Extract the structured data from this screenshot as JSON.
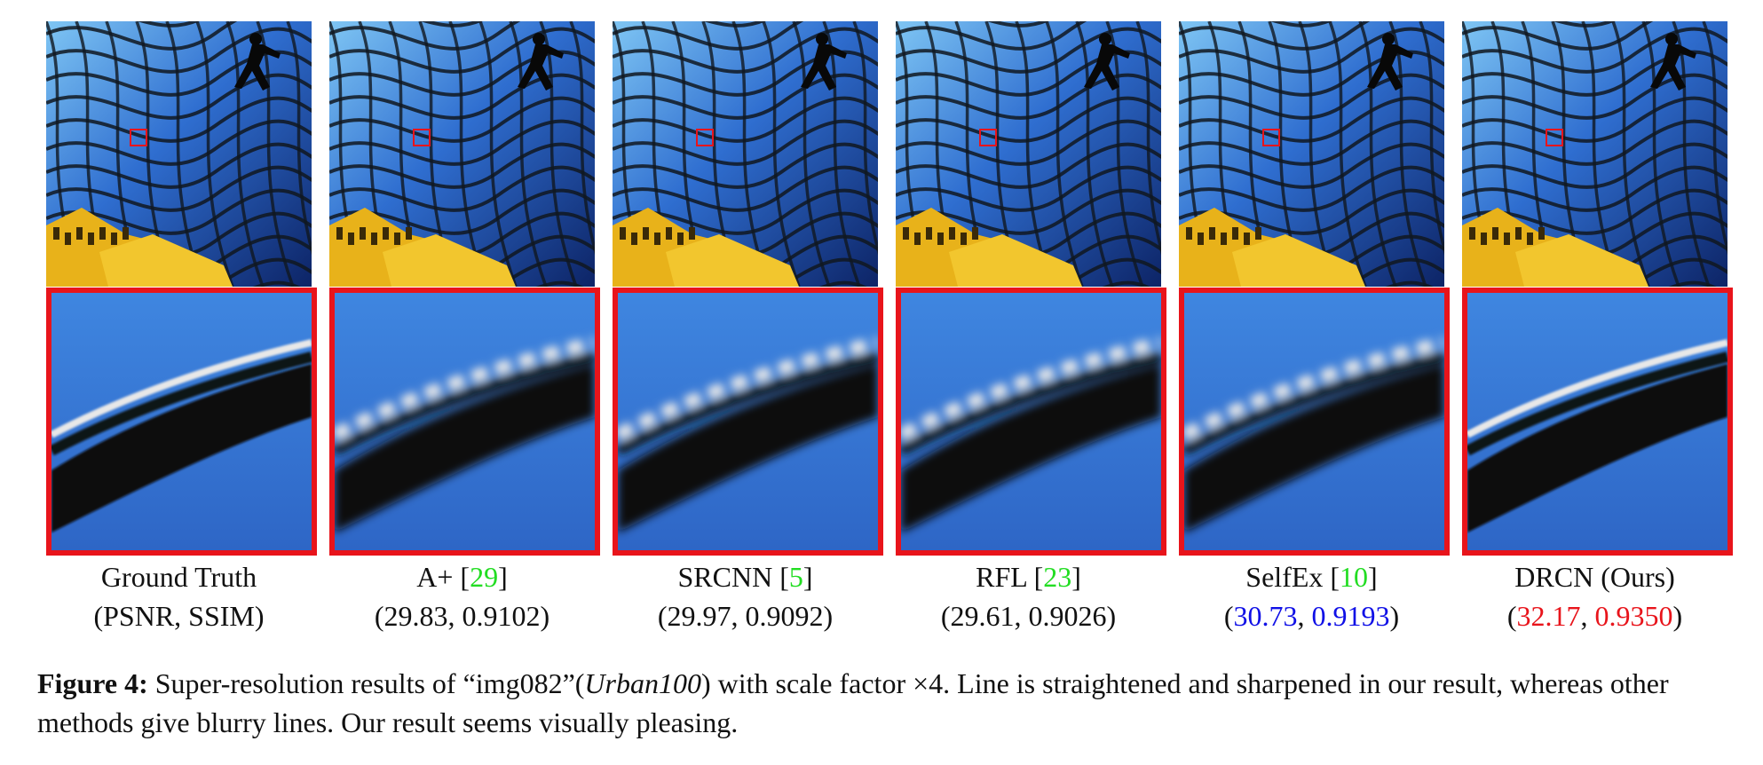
{
  "panels": [
    {
      "method": "Ground Truth",
      "ref": "",
      "metric_line": "(PSNR, SSIM)",
      "psnr": "",
      "ssim": "",
      "metric_color": "",
      "blur": 0
    },
    {
      "method": "A+",
      "ref": "29",
      "metric_line": "",
      "psnr": "29.83",
      "ssim": "0.9102",
      "metric_color": "",
      "blur": 1
    },
    {
      "method": "SRCNN",
      "ref": "5",
      "metric_line": "",
      "psnr": "29.97",
      "ssim": "0.9092",
      "metric_color": "",
      "blur": 1
    },
    {
      "method": "RFL",
      "ref": "23",
      "metric_line": "",
      "psnr": "29.61",
      "ssim": "0.9026",
      "metric_color": "",
      "blur": 1
    },
    {
      "method": "SelfEx",
      "ref": "10",
      "metric_line": "",
      "psnr": "30.73",
      "ssim": "0.9193",
      "metric_color": "#1010e6",
      "blur": 1
    },
    {
      "method": "DRCN (Ours)",
      "ref": "",
      "metric_line": "",
      "psnr": "32.17",
      "ssim": "0.9350",
      "metric_color": "#e8141b",
      "blur": 0
    }
  ],
  "colors": {
    "zoom_border": "#e8141b",
    "citation": "#22dd22",
    "second_best": "#1010e6",
    "best": "#e8141b",
    "glass_blue": "#2f6ed0",
    "building_yellow": "#e8b21a"
  },
  "caption": {
    "label": "Figure 4:",
    "text_before": " Super-resolution results of “img082”(",
    "dataset": "Urban100",
    "text_after": ") with scale factor ×4. Line is straightened and sharpened in our result, whereas other methods give blurry lines. Our result seems visually pleasing."
  }
}
